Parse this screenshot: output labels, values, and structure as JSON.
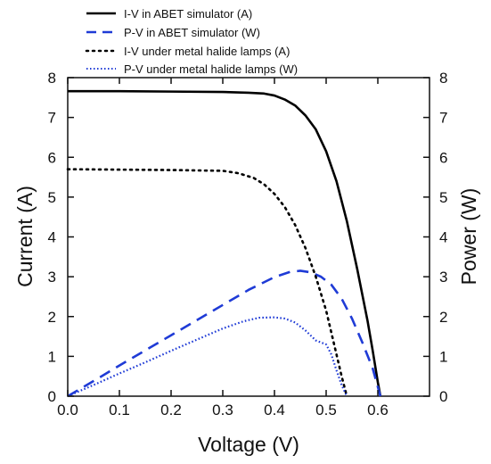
{
  "chart_data": {
    "type": "line",
    "xlabel": "Voltage (V)",
    "ylabel": "Current (A)",
    "y2label": "Power (W)",
    "xlim": [
      0,
      0.7
    ],
    "ylim": [
      0,
      8
    ],
    "y2lim": [
      0,
      8
    ],
    "xticks": [
      0.0,
      0.1,
      0.2,
      0.3,
      0.4,
      0.5,
      0.6
    ],
    "xtick_labels": [
      "0.0",
      "0.1",
      "0.2",
      "0.3",
      "0.4",
      "0.5",
      "0.6"
    ],
    "yticks": [
      0,
      1,
      2,
      3,
      4,
      5,
      6,
      7,
      8
    ],
    "ytick_labels": [
      "0",
      "1",
      "2",
      "3",
      "4",
      "5",
      "6",
      "7",
      "8"
    ],
    "y2tick_labels": [
      "0",
      "1",
      "2",
      "3",
      "4",
      "5",
      "6",
      "7",
      "8"
    ],
    "grid": false,
    "legend_position": "top-left",
    "series": [
      {
        "name": "I-V in ABET simulator (A)",
        "axis": "left",
        "color": "#000000",
        "style": "solid",
        "points": [
          [
            0.0,
            7.66
          ],
          [
            0.1,
            7.66
          ],
          [
            0.2,
            7.65
          ],
          [
            0.3,
            7.64
          ],
          [
            0.35,
            7.62
          ],
          [
            0.38,
            7.6
          ],
          [
            0.4,
            7.55
          ],
          [
            0.42,
            7.45
          ],
          [
            0.44,
            7.3
          ],
          [
            0.46,
            7.05
          ],
          [
            0.48,
            6.7
          ],
          [
            0.5,
            6.15
          ],
          [
            0.52,
            5.4
          ],
          [
            0.54,
            4.4
          ],
          [
            0.56,
            3.2
          ],
          [
            0.58,
            1.9
          ],
          [
            0.59,
            1.15
          ],
          [
            0.6,
            0.35
          ],
          [
            0.605,
            0.0
          ]
        ]
      },
      {
        "name": "P-V in ABET simulator (W)",
        "axis": "right",
        "color": "#1f3bd6",
        "style": "dashed",
        "points": [
          [
            0.0,
            0.0
          ],
          [
            0.05,
            0.38
          ],
          [
            0.1,
            0.77
          ],
          [
            0.15,
            1.15
          ],
          [
            0.2,
            1.53
          ],
          [
            0.25,
            1.91
          ],
          [
            0.3,
            2.29
          ],
          [
            0.35,
            2.67
          ],
          [
            0.4,
            2.99
          ],
          [
            0.43,
            3.12
          ],
          [
            0.45,
            3.15
          ],
          [
            0.47,
            3.11
          ],
          [
            0.49,
            3.0
          ],
          [
            0.51,
            2.8
          ],
          [
            0.53,
            2.45
          ],
          [
            0.55,
            1.95
          ],
          [
            0.57,
            1.35
          ],
          [
            0.59,
            0.7
          ],
          [
            0.605,
            0.0
          ]
        ]
      },
      {
        "name": "I-V under metal halide lamps (A)",
        "axis": "left",
        "color": "#000000",
        "style": "dotted",
        "points": [
          [
            0.0,
            5.7
          ],
          [
            0.1,
            5.69
          ],
          [
            0.2,
            5.68
          ],
          [
            0.3,
            5.66
          ],
          [
            0.33,
            5.6
          ],
          [
            0.36,
            5.48
          ],
          [
            0.38,
            5.32
          ],
          [
            0.4,
            5.08
          ],
          [
            0.42,
            4.75
          ],
          [
            0.44,
            4.3
          ],
          [
            0.46,
            3.72
          ],
          [
            0.48,
            3.0
          ],
          [
            0.5,
            2.15
          ],
          [
            0.51,
            1.6
          ],
          [
            0.52,
            1.05
          ],
          [
            0.53,
            0.5
          ],
          [
            0.54,
            0.0
          ]
        ]
      },
      {
        "name": "P-V under metal halide lamps (W)",
        "axis": "right",
        "color": "#1f3bd6",
        "style": "dotted",
        "points": [
          [
            0.0,
            0.0
          ],
          [
            0.05,
            0.28
          ],
          [
            0.1,
            0.57
          ],
          [
            0.15,
            0.85
          ],
          [
            0.2,
            1.14
          ],
          [
            0.25,
            1.42
          ],
          [
            0.3,
            1.7
          ],
          [
            0.34,
            1.88
          ],
          [
            0.37,
            1.97
          ],
          [
            0.4,
            1.98
          ],
          [
            0.42,
            1.95
          ],
          [
            0.44,
            1.85
          ],
          [
            0.46,
            1.65
          ],
          [
            0.48,
            1.4
          ],
          [
            0.5,
            1.3
          ],
          [
            0.51,
            1.05
          ],
          [
            0.52,
            0.65
          ],
          [
            0.53,
            0.28
          ],
          [
            0.54,
            0.0
          ]
        ]
      }
    ]
  }
}
